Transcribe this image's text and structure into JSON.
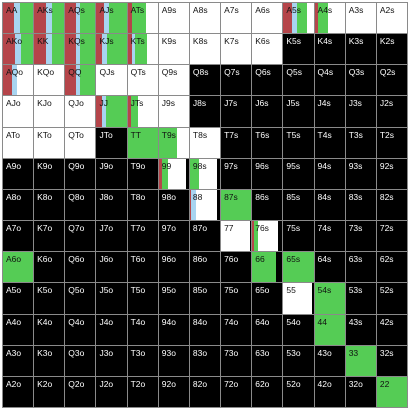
{
  "title": "",
  "colors": {
    "fold": "#000000",
    "empty": "#ffffff",
    "call": "#55cc55",
    "raise": "#b5454a",
    "allin": "#a8d4f0",
    "label_dark": "#111111",
    "label_light": "#ffffff"
  },
  "ranks": [
    "A",
    "K",
    "Q",
    "J",
    "T",
    "9",
    "8",
    "7",
    "6",
    "5",
    "4",
    "3",
    "2"
  ],
  "hands": [
    [
      "AA",
      "AKs",
      "AQs",
      "AJs",
      "ATs",
      "A9s",
      "A8s",
      "A7s",
      "A6s",
      "A5s",
      "A4s",
      "A3s",
      "A2s"
    ],
    [
      "AKo",
      "KK",
      "KQs",
      "KJs",
      "KTs",
      "K9s",
      "K8s",
      "K7s",
      "K6s",
      "K5s",
      "K4s",
      "K3s",
      "K2s"
    ],
    [
      "AQo",
      "KQo",
      "QQ",
      "QJs",
      "QTs",
      "Q9s",
      "Q8s",
      "Q7s",
      "Q6s",
      "Q5s",
      "Q4s",
      "Q3s",
      "Q2s"
    ],
    [
      "AJo",
      "KJo",
      "QJo",
      "JJ",
      "JTs",
      "J9s",
      "J8s",
      "J7s",
      "J6s",
      "J5s",
      "J4s",
      "J3s",
      "J2s"
    ],
    [
      "ATo",
      "KTo",
      "QTo",
      "JTo",
      "TT",
      "T9s",
      "T8s",
      "T7s",
      "T6s",
      "T5s",
      "T4s",
      "T3s",
      "T2s"
    ],
    [
      "A9o",
      "K9o",
      "Q9o",
      "J9o",
      "T9o",
      "99",
      "98s",
      "97s",
      "96s",
      "95s",
      "94s",
      "93s",
      "92s"
    ],
    [
      "A8o",
      "K8o",
      "Q8o",
      "J8o",
      "T8o",
      "98o",
      "88",
      "87s",
      "86s",
      "85s",
      "84s",
      "83s",
      "82s"
    ],
    [
      "A7o",
      "K7o",
      "Q7o",
      "J7o",
      "T7o",
      "97o",
      "87o",
      "77",
      "76s",
      "75s",
      "74s",
      "73s",
      "72s"
    ],
    [
      "A6o",
      "K6o",
      "Q6o",
      "J6o",
      "T6o",
      "96o",
      "86o",
      "76o",
      "66",
      "65s",
      "64s",
      "63s",
      "62s"
    ],
    [
      "A5o",
      "K5o",
      "Q5o",
      "J5o",
      "T5o",
      "95o",
      "85o",
      "75o",
      "65o",
      "55",
      "54s",
      "53s",
      "52s"
    ],
    [
      "A4o",
      "K4o",
      "Q4o",
      "J4o",
      "T4o",
      "94o",
      "84o",
      "74o",
      "64o",
      "54o",
      "44",
      "43s",
      "42s"
    ],
    [
      "A3o",
      "K3o",
      "Q3o",
      "J3o",
      "T3o",
      "93o",
      "83o",
      "73o",
      "63o",
      "53o",
      "43o",
      "33",
      "32s"
    ],
    [
      "A2o",
      "K2o",
      "Q2o",
      "J2o",
      "T2o",
      "92o",
      "82o",
      "72o",
      "62o",
      "52o",
      "42o",
      "32o",
      "22"
    ]
  ],
  "cell_mix": {
    "AA": {
      "raise": 0.35,
      "allin": 0.2,
      "call": 0.45
    },
    "AKs": {
      "raise": 0.4,
      "allin": 0.2,
      "call": 0.4
    },
    "AQs": {
      "raise": 0.35,
      "allin": 0.15,
      "call": 0.5
    },
    "AJs": {
      "raise": 0.25,
      "allin": 0.15,
      "call": 0.6
    },
    "ATs": {
      "raise": 0.15,
      "call": 0.45,
      "empty": 0.4
    },
    "A5s": {
      "raise": 0.3,
      "allin": 0.15,
      "call": 0.35,
      "empty": 0.2
    },
    "A4s": {
      "raise": 0.1,
      "call": 0.35,
      "empty": 0.55
    },
    "AKo": {
      "raise": 0.4,
      "allin": 0.2,
      "call": 0.4
    },
    "KK": {
      "raise": 0.4,
      "allin": 0.2,
      "call": 0.4
    },
    "KQs": {
      "raise": 0.35,
      "allin": 0.15,
      "call": 0.5
    },
    "KJs": {
      "raise": 0.2,
      "allin": 0.15,
      "call": 0.65
    },
    "KTs": {
      "raise": 0.15,
      "allin": 0.1,
      "call": 0.4,
      "empty": 0.35
    },
    "K5s": {
      "fold": 1.0
    },
    "K4s": {
      "fold": 1.0
    },
    "K3s": {
      "fold": 1.0
    },
    "K2s": {
      "fold": 1.0
    },
    "AQo": {
      "raise": 0.3,
      "allin": 0.15,
      "empty": 0.55
    },
    "QQ": {
      "raise": 0.35,
      "allin": 0.15,
      "call": 0.5
    },
    "Q8s": {
      "fold": 1.0
    },
    "Q7s": {
      "fold": 1.0
    },
    "Q6s": {
      "fold": 1.0
    },
    "Q5s": {
      "fold": 1.0
    },
    "Q4s": {
      "fold": 1.0
    },
    "Q3s": {
      "fold": 1.0
    },
    "Q2s": {
      "fold": 1.0
    },
    "JJ": {
      "raise": 0.2,
      "allin": 0.1,
      "call": 0.7
    },
    "JTs": {
      "raise": 0.1,
      "call": 0.25,
      "empty": 0.65
    },
    "J8s": {
      "fold": 1.0
    },
    "J7s": {
      "fold": 1.0
    },
    "J6s": {
      "fold": 1.0
    },
    "J5s": {
      "fold": 1.0
    },
    "J4s": {
      "fold": 1.0
    },
    "J3s": {
      "fold": 1.0
    },
    "J2s": {
      "fold": 1.0
    },
    "JTo": {
      "fold": 1.0
    },
    "TT": {
      "call": 1.0
    },
    "T9s": {
      "call": 0.6,
      "empty": 0.4
    },
    "T7s": {
      "fold": 1.0
    },
    "T6s": {
      "fold": 1.0
    },
    "T5s": {
      "fold": 1.0
    },
    "T4s": {
      "fold": 1.0
    },
    "T3s": {
      "fold": 1.0
    },
    "T2s": {
      "fold": 1.0
    },
    "A9o": {
      "fold": 1.0
    },
    "K9o": {
      "fold": 1.0
    },
    "Q9o": {
      "fold": 1.0
    },
    "J9o": {
      "fold": 1.0
    },
    "T9o": {
      "fold": 1.0
    },
    "99": {
      "fold": 0.1,
      "raise": 0.1,
      "call": 0.2,
      "empty": 0.6
    },
    "98s": {
      "fold": 0.1,
      "call": 0.3,
      "empty": 0.6
    },
    "97s": {
      "fold": 1.0
    },
    "96s": {
      "fold": 1.0
    },
    "95s": {
      "fold": 1.0
    },
    "94s": {
      "fold": 1.0
    },
    "93s": {
      "fold": 1.0
    },
    "92s": {
      "fold": 1.0
    },
    "A8o": {
      "fold": 1.0
    },
    "K8o": {
      "fold": 1.0
    },
    "Q8o": {
      "fold": 1.0
    },
    "J8o": {
      "fold": 1.0
    },
    "T8o": {
      "fold": 1.0
    },
    "98o": {
      "fold": 1.0
    },
    "88": {
      "fold": 0.1,
      "raise": 0.05,
      "allin": 0.15,
      "empty": 0.7
    },
    "87s": {
      "call": 1.0
    },
    "86s": {
      "fold": 1.0
    },
    "85s": {
      "fold": 1.0
    },
    "84s": {
      "fold": 1.0
    },
    "83s": {
      "fold": 1.0
    },
    "82s": {
      "fold": 1.0
    },
    "A7o": {
      "fold": 1.0
    },
    "K7o": {
      "fold": 1.0
    },
    "Q7o": {
      "fold": 1.0
    },
    "J7o": {
      "fold": 1.0
    },
    "T7o": {
      "fold": 1.0
    },
    "97o": {
      "fold": 1.0
    },
    "87o": {
      "fold": 1.0
    },
    "77": {
      "fold": 0.05,
      "empty": 0.95
    },
    "76s": {
      "fold": 0.15,
      "raise": 0.05,
      "call": 0.15,
      "empty": 0.65
    },
    "75s": {
      "fold": 1.0
    },
    "74s": {
      "fold": 1.0
    },
    "73s": {
      "fold": 1.0
    },
    "72s": {
      "fold": 1.0
    },
    "A6o": {
      "call": 1.0
    },
    "K6o": {
      "fold": 1.0
    },
    "Q6o": {
      "fold": 1.0
    },
    "J6o": {
      "fold": 1.0
    },
    "T6o": {
      "fold": 1.0
    },
    "96o": {
      "fold": 1.0
    },
    "86o": {
      "fold": 1.0
    },
    "76o": {
      "fold": 1.0
    },
    "66": {
      "fold": 0.2,
      "call": 0.8
    },
    "65s": {
      "call": 1.0
    },
    "64s": {
      "fold": 1.0
    },
    "63s": {
      "fold": 1.0
    },
    "62s": {
      "fold": 1.0
    },
    "A5o": {
      "fold": 1.0
    },
    "K5o": {
      "fold": 1.0
    },
    "Q5o": {
      "fold": 1.0
    },
    "J5o": {
      "fold": 1.0
    },
    "T5o": {
      "fold": 1.0
    },
    "95o": {
      "fold": 1.0
    },
    "85o": {
      "fold": 1.0
    },
    "75o": {
      "fold": 1.0
    },
    "65o": {
      "fold": 1.0
    },
    "55": {
      "fold": 0.05,
      "empty": 0.95
    },
    "54s": {
      "call": 1.0
    },
    "53s": {
      "fold": 1.0
    },
    "52s": {
      "fold": 1.0
    },
    "A4o": {
      "fold": 1.0
    },
    "K4o": {
      "fold": 1.0
    },
    "Q4o": {
      "fold": 1.0
    },
    "J4o": {
      "fold": 1.0
    },
    "T4o": {
      "fold": 1.0
    },
    "94o": {
      "fold": 1.0
    },
    "84o": {
      "fold": 1.0
    },
    "74o": {
      "fold": 1.0
    },
    "64o": {
      "fold": 1.0
    },
    "54o": {
      "fold": 1.0
    },
    "44": {
      "call": 1.0
    },
    "43s": {
      "fold": 1.0
    },
    "42s": {
      "fold": 1.0
    },
    "A3o": {
      "fold": 1.0
    },
    "K3o": {
      "fold": 1.0
    },
    "Q3o": {
      "fold": 1.0
    },
    "J3o": {
      "fold": 1.0
    },
    "T3o": {
      "fold": 1.0
    },
    "93o": {
      "fold": 1.0
    },
    "83o": {
      "fold": 1.0
    },
    "73o": {
      "fold": 1.0
    },
    "63o": {
      "fold": 1.0
    },
    "53o": {
      "fold": 1.0
    },
    "43o": {
      "fold": 1.0
    },
    "33": {
      "call": 1.0
    },
    "32s": {
      "fold": 1.0
    },
    "A2o": {
      "fold": 1.0
    },
    "K2o": {
      "fold": 1.0
    },
    "Q2o": {
      "fold": 1.0
    },
    "J2o": {
      "fold": 1.0
    },
    "T2o": {
      "fold": 1.0
    },
    "92o": {
      "fold": 1.0
    },
    "82o": {
      "fold": 1.0
    },
    "72o": {
      "fold": 1.0
    },
    "62o": {
      "fold": 1.0
    },
    "52o": {
      "fold": 1.0
    },
    "42o": {
      "fold": 1.0
    },
    "32o": {
      "fold": 1.0
    },
    "22": {
      "call": 1.0
    }
  }
}
